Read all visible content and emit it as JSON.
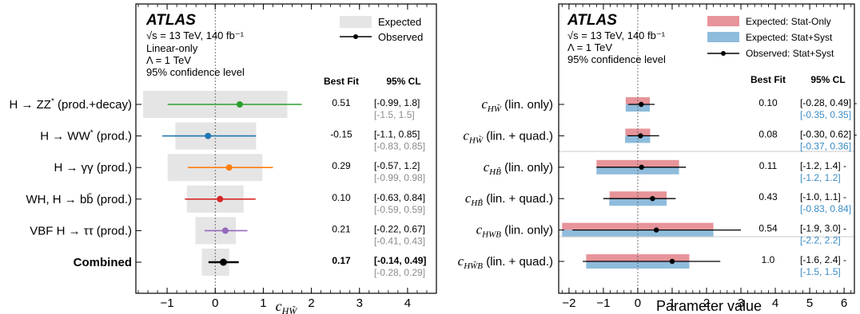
{
  "chart_data": [
    {
      "type": "forest",
      "experiment": "ATLAS",
      "info": [
        "√s = 13 TeV, 140 fb⁻¹",
        "Linear-only",
        "Λ = 1 TeV",
        "95% confidence level"
      ],
      "legend": [
        "Expected",
        "Observed"
      ],
      "legend_placement": "top-right",
      "col_headers": [
        "Best Fit",
        "95% CL"
      ],
      "xlabel": "c_HW̃",
      "xlim": [
        -1.65,
        4.6
      ],
      "xticks": [
        -1,
        0,
        1,
        2,
        3,
        4
      ],
      "rows": [
        {
          "label": "H → ZZ* (prod.+decay)",
          "best": 0.51,
          "best_text": "0.51",
          "obs": [
            -0.99,
            1.8
          ],
          "exp": [
            -1.5,
            1.5
          ],
          "obs_text": "[-0.99, 1.8]",
          "exp_text": "[-1.5, 1.5]",
          "color": "#2ca02c"
        },
        {
          "label": "H → WW* (prod.)",
          "best": -0.15,
          "best_text": "-0.15",
          "obs": [
            -1.1,
            0.85
          ],
          "exp": [
            -0.83,
            0.85
          ],
          "obs_text": "[-1.1, 0.85]",
          "exp_text": "[-0.83, 0.85]",
          "color": "#1f77b4"
        },
        {
          "label": "H → γγ (prod.)",
          "best": 0.29,
          "best_text": "0.29",
          "obs": [
            -0.57,
            1.2
          ],
          "exp": [
            -0.99,
            0.98
          ],
          "obs_text": "[-0.57, 1.2]",
          "exp_text": "[-0.99, 0.98]",
          "color": "#ff7f0e"
        },
        {
          "label": "WH, H → bb̄ (prod.)",
          "best": 0.1,
          "best_text": "0.10",
          "obs": [
            -0.63,
            0.84
          ],
          "exp": [
            -0.59,
            0.59
          ],
          "obs_text": "[-0.63, 0.84]",
          "exp_text": "[-0.59, 0.59]",
          "color": "#d62728"
        },
        {
          "label": "VBF H → ττ (prod.)",
          "best": 0.21,
          "best_text": "0.21",
          "obs": [
            -0.22,
            0.67
          ],
          "exp": [
            -0.41,
            0.43
          ],
          "obs_text": "[-0.22, 0.67]",
          "exp_text": "[-0.41, 0.43]",
          "color": "#9467bd"
        },
        {
          "label": "Combined",
          "best": 0.17,
          "best_text": "0.17",
          "obs": [
            -0.14,
            0.49
          ],
          "exp": [
            -0.28,
            0.29
          ],
          "obs_text": "[-0.14, 0.49]",
          "exp_text": "[-0.28, 0.29]",
          "color": "#000000",
          "bold": true
        }
      ]
    },
    {
      "type": "forest",
      "experiment": "ATLAS",
      "info": [
        "√s = 13 TeV, 140 fb⁻¹",
        "Λ = 1 TeV",
        "95% confidence level"
      ],
      "legend": [
        "Expected: Stat-Only",
        "Expected: Stat+Syst",
        "Observed: Stat+Syst"
      ],
      "legend_placement": "top-right",
      "col_headers": [
        "Best Fit",
        "95% CL"
      ],
      "xlabel": "Parameter value",
      "xlim": [
        -2.3,
        6.3
      ],
      "xticks": [
        -2,
        -1,
        0,
        1,
        2,
        3,
        4,
        5,
        6
      ],
      "colors": {
        "stat_only": "#e7949a",
        "stat_syst": "#8fbcdc"
      },
      "rows": [
        {
          "label": "c_HW̃ (lin. only)",
          "best": 0.1,
          "best_text": "0.10",
          "obs": [
            -0.28,
            0.49
          ],
          "stat": [
            -0.35,
            0.35
          ],
          "syst": [
            -0.35,
            0.35
          ],
          "obs_text": "[-0.28, 0.49]",
          "exp_text": "[-0.35, 0.35]"
        },
        {
          "label": "c_HW̃ (lin. + quad.)",
          "best": 0.08,
          "best_text": "0.08",
          "obs": [
            -0.3,
            0.62
          ],
          "stat": [
            -0.36,
            0.36
          ],
          "syst": [
            -0.37,
            0.36
          ],
          "obs_text": "[-0.30, 0.62]",
          "exp_text": "[-0.37, 0.36]"
        },
        {
          "label": "c_HB̃ (lin. only)",
          "best": 0.11,
          "best_text": "0.11",
          "obs": [
            -1.2,
            1.4
          ],
          "stat": [
            -1.2,
            1.2
          ],
          "syst": [
            -1.2,
            1.2
          ],
          "obs_text": "[-1.2, 1.4]",
          "exp_text": "[-1.2, 1.2]"
        },
        {
          "label": "c_HB̃ (lin. + quad.)",
          "best": 0.43,
          "best_text": "0.43",
          "obs": [
            -1.0,
            1.1
          ],
          "stat": [
            -0.82,
            0.84
          ],
          "syst": [
            -0.83,
            0.84
          ],
          "obs_text": "[-1.0, 1.1]",
          "exp_text": "[-0.83, 0.84]"
        },
        {
          "label": "c_HWB (lin. only)",
          "best": 0.54,
          "best_text": "0.54",
          "obs": [
            -1.9,
            3.0
          ],
          "stat": [
            -2.2,
            2.2
          ],
          "syst": [
            -2.2,
            2.2
          ],
          "obs_text": "[-1.9, 3.0]",
          "exp_text": "[-2.2, 2.2]"
        },
        {
          "label": "c_HW̃B (lin. + quad.)",
          "best": 1.0,
          "best_text": "1.0",
          "obs": [
            -1.6,
            2.4
          ],
          "stat": [
            -1.5,
            1.5
          ],
          "syst": [
            -1.5,
            1.5
          ],
          "obs_text": "[-1.6, 2.4]",
          "exp_text": "[-1.5, 1.5]"
        }
      ]
    }
  ]
}
